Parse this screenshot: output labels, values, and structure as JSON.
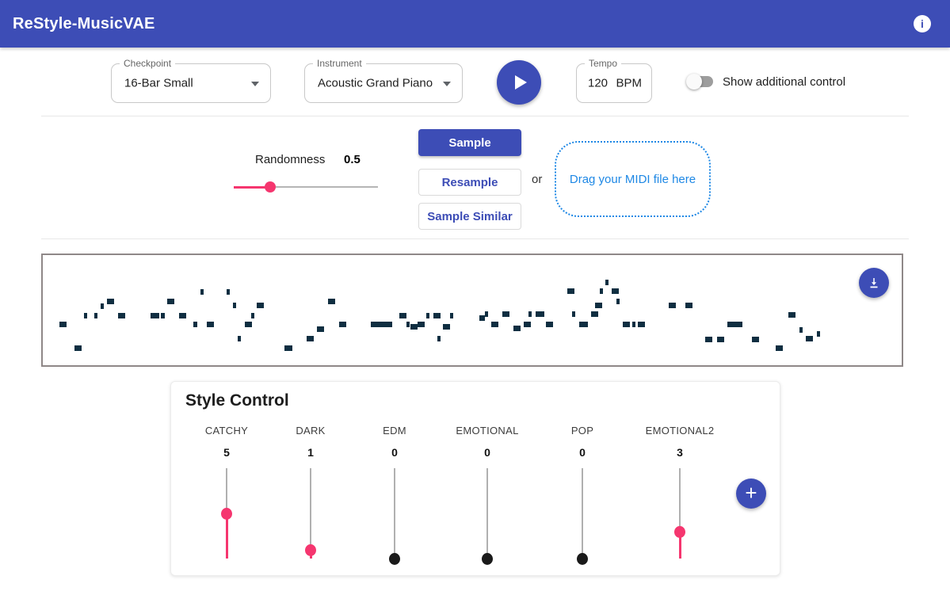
{
  "app": {
    "title": "ReStyle-MusicVAE",
    "info_glyph": "i"
  },
  "colors": {
    "indigo": "#3d4db6",
    "pink": "#f5366f",
    "note": "#0f2e41",
    "dropzone_blue": "#1e88e5",
    "slider_black": "#1a1a1a"
  },
  "toolbar": {
    "checkpoint": {
      "label": "Checkpoint",
      "value": "16-Bar Small"
    },
    "instrument": {
      "label": "Instrument",
      "value": "Acoustic Grand Piano"
    },
    "tempo": {
      "label": "Tempo",
      "value": "120",
      "unit": "BPM"
    },
    "toggle_label": "Show additional control",
    "toggle_on": false
  },
  "sampling": {
    "randomness_label": "Randomness",
    "randomness_value": "0.5",
    "slider_percent": 25,
    "sample_label": "Sample",
    "resample_label": "Resample",
    "sample_similar_label": "Sample Similar",
    "or_label": "or",
    "dropzone_label": "Drag your MIDI file here"
  },
  "piano_roll": {
    "notes": [
      [
        21,
        84,
        9
      ],
      [
        40,
        114,
        9
      ],
      [
        52,
        73,
        4
      ],
      [
        65,
        73,
        4
      ],
      [
        73,
        61,
        4
      ],
      [
        81,
        55,
        9
      ],
      [
        95,
        73,
        9
      ],
      [
        136,
        73,
        11
      ],
      [
        149,
        73,
        5
      ],
      [
        157,
        55,
        9
      ],
      [
        172,
        73,
        9
      ],
      [
        190,
        84,
        5
      ],
      [
        199,
        43,
        4
      ],
      [
        207,
        84,
        9
      ],
      [
        232,
        43,
        4
      ],
      [
        240,
        60,
        4
      ],
      [
        246,
        102,
        4
      ],
      [
        255,
        84,
        9
      ],
      [
        263,
        73,
        4
      ],
      [
        270,
        60,
        9
      ],
      [
        305,
        114,
        10
      ],
      [
        333,
        102,
        9
      ],
      [
        346,
        90,
        9
      ],
      [
        360,
        55,
        9
      ],
      [
        374,
        84,
        9
      ],
      [
        414,
        84,
        27
      ],
      [
        450,
        73,
        9
      ],
      [
        459,
        84,
        4
      ],
      [
        464,
        87,
        9
      ],
      [
        473,
        84,
        9
      ],
      [
        484,
        73,
        4
      ],
      [
        493,
        73,
        9
      ],
      [
        498,
        102,
        4
      ],
      [
        505,
        87,
        9
      ],
      [
        514,
        73,
        4
      ],
      [
        551,
        76,
        7
      ],
      [
        558,
        71,
        4
      ],
      [
        566,
        84,
        9
      ],
      [
        580,
        71,
        9
      ],
      [
        594,
        89,
        9
      ],
      [
        607,
        84,
        9
      ],
      [
        613,
        71,
        4
      ],
      [
        622,
        71,
        11
      ],
      [
        635,
        84,
        9
      ],
      [
        662,
        42,
        9
      ],
      [
        668,
        71,
        4
      ],
      [
        677,
        84,
        11
      ],
      [
        692,
        71,
        9
      ],
      [
        697,
        60,
        9
      ],
      [
        703,
        42,
        4
      ],
      [
        710,
        31,
        4
      ],
      [
        718,
        42,
        9
      ],
      [
        724,
        55,
        4
      ],
      [
        732,
        84,
        9
      ],
      [
        744,
        84,
        4
      ],
      [
        751,
        84,
        9
      ],
      [
        790,
        60,
        9
      ],
      [
        811,
        60,
        9
      ],
      [
        836,
        103,
        9
      ],
      [
        851,
        103,
        9
      ],
      [
        864,
        84,
        19
      ],
      [
        895,
        103,
        9
      ],
      [
        925,
        114,
        9
      ],
      [
        941,
        72,
        9
      ],
      [
        955,
        91,
        4
      ],
      [
        963,
        102,
        9
      ],
      [
        977,
        96,
        4
      ]
    ]
  },
  "style_control": {
    "title": "Style Control",
    "max": 10,
    "sliders": [
      {
        "label": "CATCHY",
        "value": 5
      },
      {
        "label": "DARK",
        "value": 1
      },
      {
        "label": "EDM",
        "value": 0
      },
      {
        "label": "EMOTIONAL",
        "value": 0
      },
      {
        "label": "POP",
        "value": 0
      },
      {
        "label": "EMOTIONAL2",
        "value": 3
      }
    ],
    "add_glyph": "+"
  }
}
